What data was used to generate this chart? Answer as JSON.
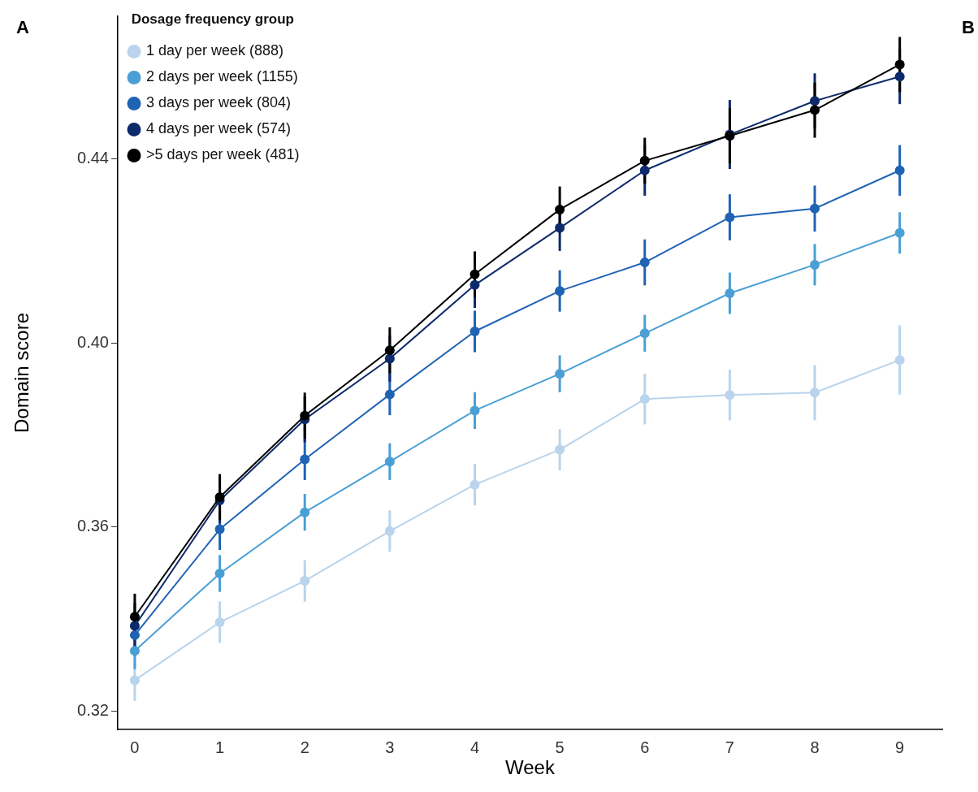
{
  "chart_data": {
    "type": "line",
    "xlabel": "Week",
    "ylabel": "Domain score",
    "legend_title": "Dosage frequency group",
    "annotations": [
      "A",
      "B"
    ],
    "x": [
      0,
      1,
      2,
      3,
      4,
      5,
      6,
      7,
      8,
      9
    ],
    "xlim": [
      -0.2,
      9.5
    ],
    "xticks": [
      0,
      1,
      2,
      3,
      4,
      5,
      6,
      7,
      8,
      9
    ],
    "ylim": [
      0.316,
      0.471
    ],
    "yticks": [
      0.32,
      0.36,
      {
        "value": 0.4,
        "label": "0.40"
      },
      0.44
    ],
    "grid": false,
    "legend": "top left",
    "marker": "circle",
    "line_style": "solid",
    "series": [
      {
        "name": "1 day per week (888)",
        "color": "#b9d4ec",
        "values": [
          0.3267,
          0.3393,
          0.3483,
          0.3591,
          0.3692,
          0.3768,
          0.3878,
          0.3887,
          0.3892,
          0.3963
        ],
        "errors": [
          0.0045,
          0.0045,
          0.0045,
          0.0045,
          0.0045,
          0.0045,
          0.0055,
          0.0055,
          0.006,
          0.0075
        ]
      },
      {
        "name": "2 days per week (1155)",
        "color": "#4a9fd5",
        "values": [
          0.3331,
          0.3499,
          0.3632,
          0.3742,
          0.3853,
          0.3933,
          0.4021,
          0.4108,
          0.417,
          0.4239
        ],
        "errors": [
          0.004,
          0.004,
          0.004,
          0.004,
          0.004,
          0.004,
          0.004,
          0.0045,
          0.0045,
          0.0045
        ]
      },
      {
        "name": "3 days per week (804)",
        "color": "#1f63b5",
        "values": [
          0.3365,
          0.3595,
          0.3747,
          0.3888,
          0.4025,
          0.4113,
          0.4175,
          0.4273,
          0.4292,
          0.4375
        ],
        "errors": [
          0.0045,
          0.0045,
          0.0045,
          0.0045,
          0.0045,
          0.0045,
          0.005,
          0.005,
          0.005,
          0.0055
        ]
      },
      {
        "name": "4 days per week (574)",
        "color": "#0d2a6b",
        "values": [
          0.3385,
          0.3658,
          0.3834,
          0.3966,
          0.4126,
          0.425,
          0.4375,
          0.4453,
          0.4526,
          0.4579
        ],
        "errors": [
          0.005,
          0.005,
          0.005,
          0.005,
          0.005,
          0.005,
          0.0055,
          0.0075,
          0.006,
          0.006
        ]
      },
      {
        "name": ">5 days per week (481)",
        "color": "#000000",
        "values": [
          0.3405,
          0.3665,
          0.3842,
          0.3984,
          0.4149,
          0.429,
          0.4396,
          0.445,
          0.4506,
          0.4605
        ],
        "errors": [
          0.005,
          0.005,
          0.005,
          0.005,
          0.005,
          0.005,
          0.005,
          0.006,
          0.006,
          0.006
        ]
      }
    ]
  }
}
